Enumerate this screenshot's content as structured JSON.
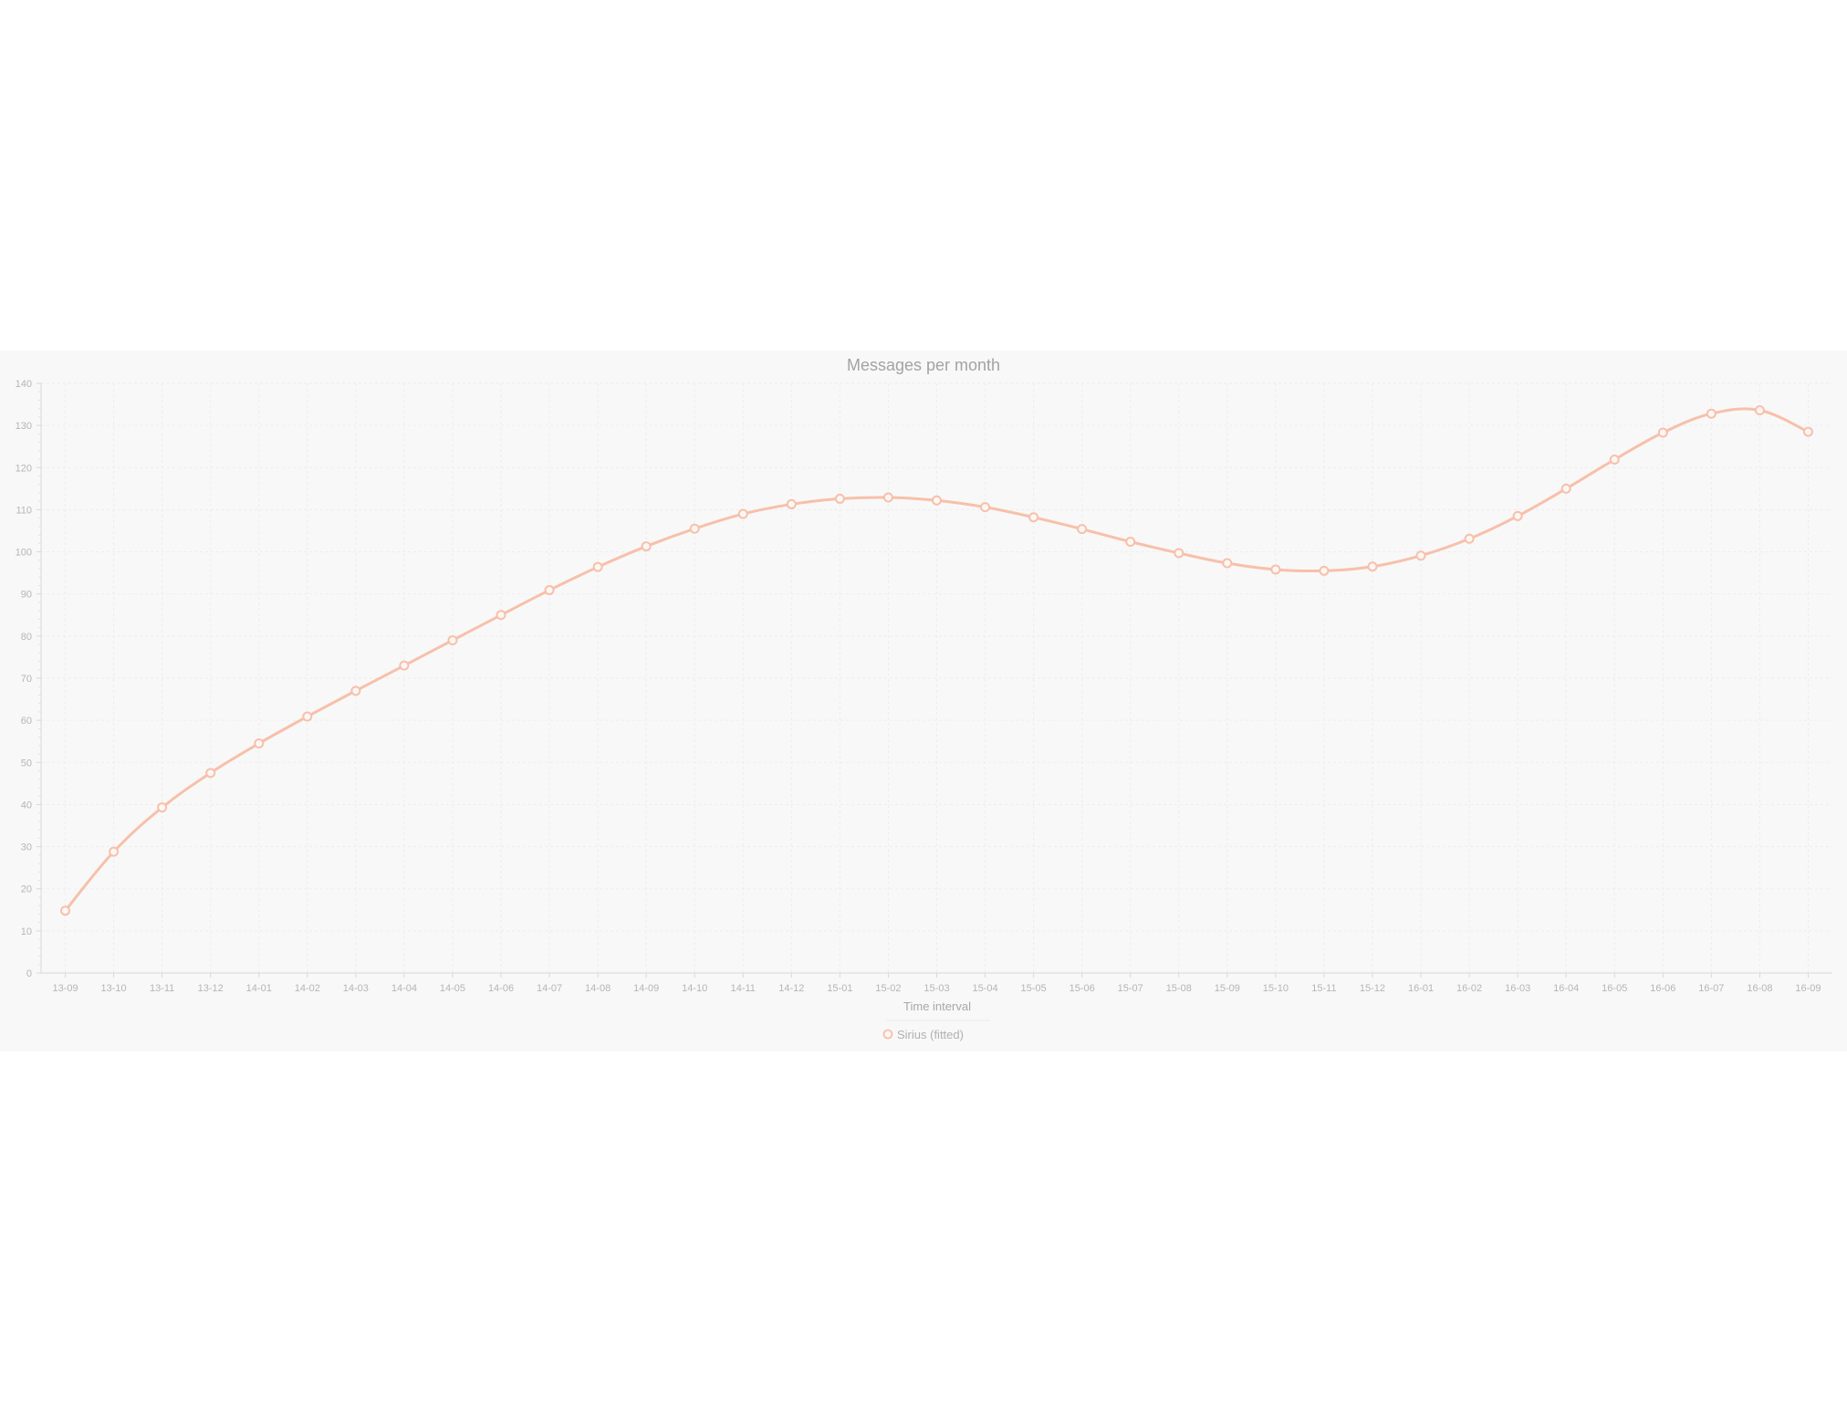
{
  "chart_data": {
    "type": "line",
    "title": "Messages per month",
    "xlabel": "Time interval",
    "ylabel": "",
    "ylim": [
      0,
      140
    ],
    "yticks": [
      0,
      10,
      20,
      30,
      40,
      50,
      60,
      70,
      80,
      90,
      100,
      110,
      120,
      130,
      140
    ],
    "grid": true,
    "legend_position": "bottom",
    "categories": [
      "13-09",
      "13-10",
      "13-11",
      "13-12",
      "14-01",
      "14-02",
      "14-03",
      "14-04",
      "14-05",
      "14-06",
      "14-07",
      "14-08",
      "14-09",
      "14-10",
      "14-11",
      "14-12",
      "15-01",
      "15-02",
      "15-03",
      "15-04",
      "15-05",
      "15-06",
      "15-07",
      "15-08",
      "15-09",
      "15-10",
      "15-11",
      "15-12",
      "16-01",
      "16-02",
      "16-03",
      "16-04",
      "16-05",
      "16-06",
      "16-07",
      "16-08",
      "16-09"
    ],
    "series": [
      {
        "name": "Sirius (fitted)",
        "color": "#f7c0aa",
        "values": [
          14.8,
          28.8,
          39.3,
          47.5,
          54.5,
          60.9,
          67.0,
          73.0,
          79.0,
          85.0,
          90.9,
          96.4,
          101.3,
          105.5,
          109.0,
          111.3,
          112.6,
          112.9,
          112.2,
          110.6,
          108.2,
          105.4,
          102.4,
          99.7,
          97.3,
          95.8,
          95.5,
          96.5,
          99.1,
          103.1,
          108.5,
          115.0,
          121.9,
          128.3,
          132.8,
          133.6,
          128.5
        ]
      }
    ]
  }
}
